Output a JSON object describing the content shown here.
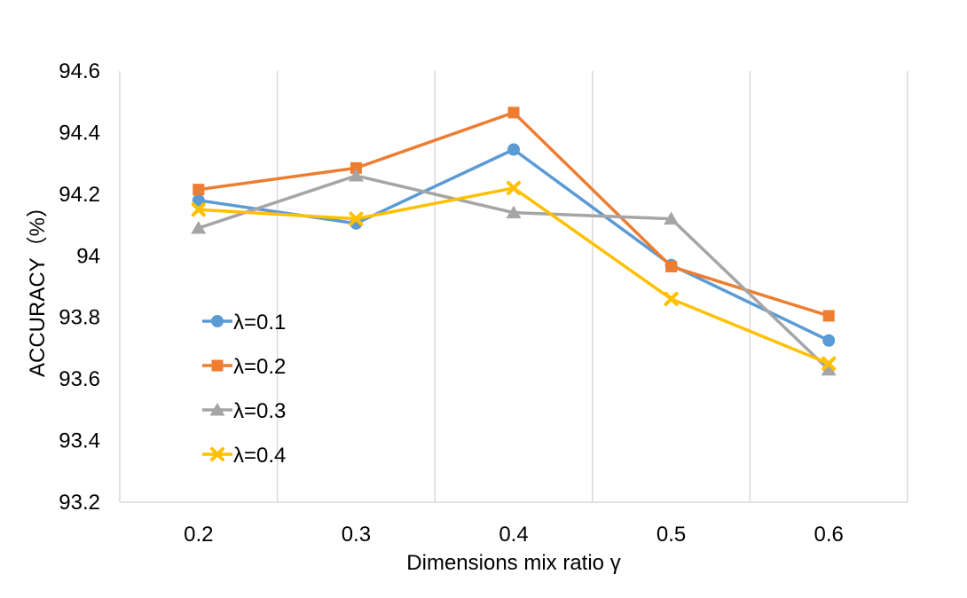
{
  "chart_data": {
    "type": "line",
    "title": "",
    "xlabel": "Dimensions mix ratio γ",
    "ylabel": "ACCURACY（%）",
    "categories": [
      "0.2",
      "0.3",
      "0.4",
      "0.5",
      "0.6"
    ],
    "ylim": [
      93.2,
      94.6
    ],
    "yticks": [
      "93.2",
      "93.4",
      "93.6",
      "93.8",
      "94",
      "94.2",
      "94.4",
      "94.6"
    ],
    "grid": "vertical",
    "legend": "left",
    "series": [
      {
        "name": "λ=0.1",
        "color": "#5B9BD5",
        "marker": "circle",
        "values": [
          94.18,
          94.105,
          94.345,
          93.97,
          93.725
        ]
      },
      {
        "name": "λ=0.2",
        "color": "#ED7D31",
        "marker": "square",
        "values": [
          94.215,
          94.285,
          94.465,
          93.965,
          93.805
        ]
      },
      {
        "name": "λ=0.3",
        "color": "#A5A5A5",
        "marker": "triangle",
        "values": [
          94.09,
          94.26,
          94.14,
          94.12,
          93.63
        ]
      },
      {
        "name": "λ=0.4",
        "color": "#FFC000",
        "marker": "x",
        "values": [
          94.15,
          94.12,
          94.22,
          93.86,
          93.65
        ]
      }
    ]
  }
}
